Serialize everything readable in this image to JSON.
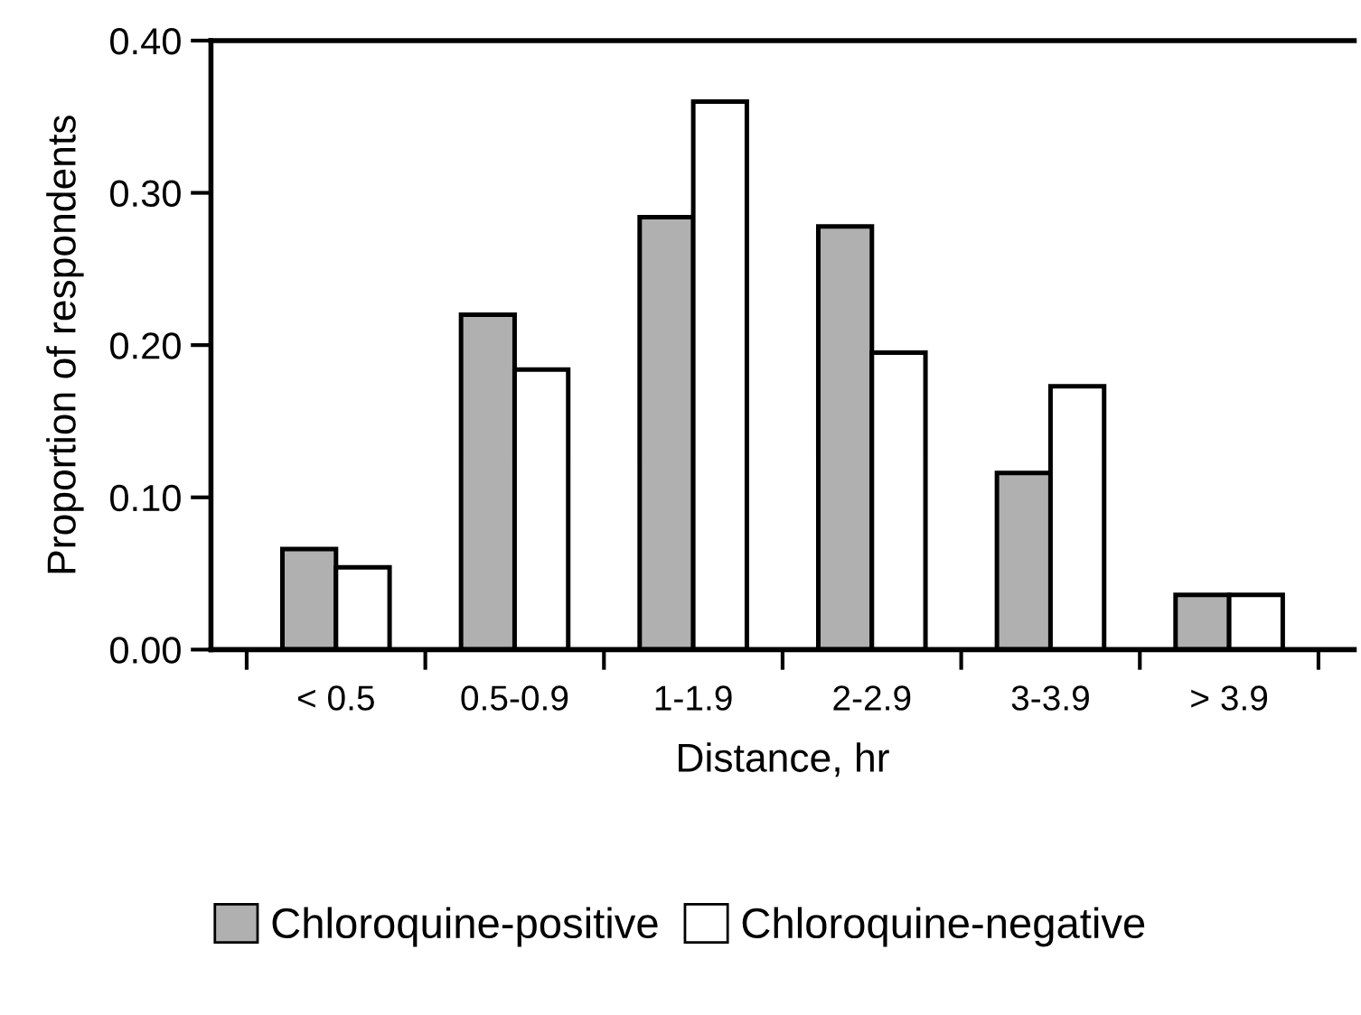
{
  "chart_data": {
    "type": "bar",
    "xlabel": "Distance, hr",
    "ylabel": "Proportion of respondents",
    "categories": [
      "< 0.5",
      "0.5-0.9",
      "1-1.9",
      "2-2.9",
      "3-3.9",
      "> 3.9"
    ],
    "series": [
      {
        "name": "Chloroquine-positive",
        "color": "#b0b0b0",
        "values": [
          0.066,
          0.22,
          0.284,
          0.278,
          0.116,
          0.036
        ]
      },
      {
        "name": "Chloroquine-negative",
        "color": "#ffffff",
        "values": [
          0.054,
          0.184,
          0.36,
          0.195,
          0.173,
          0.036
        ]
      }
    ],
    "ylim": [
      0,
      0.4
    ],
    "yticks": [
      {
        "value": 0,
        "label": "0.00"
      },
      {
        "value": 0.1,
        "label": "0.10"
      },
      {
        "value": 0.2,
        "label": "0.20"
      },
      {
        "value": 0.3,
        "label": "0.30"
      },
      {
        "value": 0.4,
        "label": "0.40"
      }
    ],
    "grid": false,
    "legend": "bottom"
  }
}
